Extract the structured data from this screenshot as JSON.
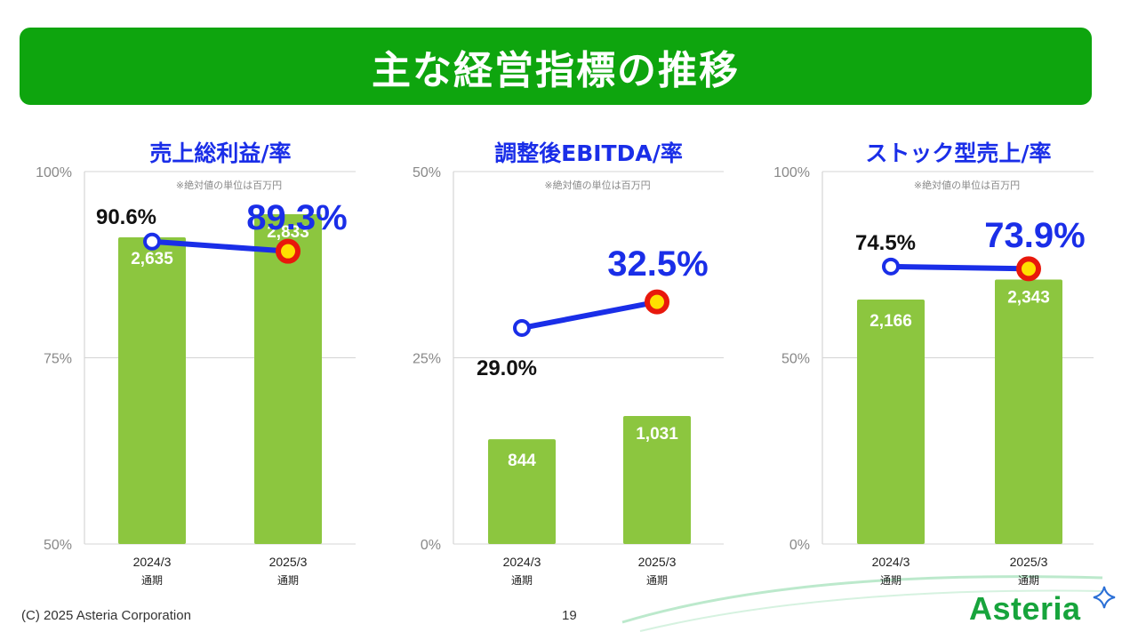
{
  "slide": {
    "title": "主な経営指標の推移",
    "copyright": "(C) 2025 Asteria Corporation",
    "page_number": "19",
    "logo_text": "Asteria"
  },
  "colors": {
    "banner": "#0ea50e",
    "bar": "#8cc63f",
    "line": "#1a2ee8",
    "marker_first": "#1a2ee8",
    "marker_last": "#e8180c",
    "marker_last_center": "#ffe000",
    "label_highlight": "#1a2ee8",
    "label_normal": "#111111",
    "chart_title": "#1a2ee8"
  },
  "chart_data": [
    {
      "type": "bar+line",
      "title": "売上総利益/率",
      "note": "※絶対値の単位は百万円",
      "categories": [
        "2024/3",
        "2025/3"
      ],
      "category_sublabel": "通期",
      "bar_values": [
        2635,
        2833
      ],
      "bar_labels": [
        "2,635",
        "2,833"
      ],
      "rate_values": [
        90.6,
        89.3
      ],
      "rate_labels": [
        "90.6%",
        "89.3%"
      ],
      "ylim": [
        50,
        100
      ],
      "yticks": [
        50,
        75,
        100
      ],
      "ytick_labels": [
        "50%",
        "75%",
        "100%"
      ],
      "grid": true
    },
    {
      "type": "bar+line",
      "title": "調整後EBITDA/率",
      "note": "※絶対値の単位は百万円",
      "categories": [
        "2024/3",
        "2025/3"
      ],
      "category_sublabel": "通期",
      "bar_values": [
        844,
        1031
      ],
      "bar_labels": [
        "844",
        "1,031"
      ],
      "rate_values": [
        29.0,
        32.5
      ],
      "rate_labels": [
        "29.0%",
        "32.5%"
      ],
      "ylim": [
        0,
        50
      ],
      "yticks": [
        0,
        25,
        50
      ],
      "ytick_labels": [
        "0%",
        "25%",
        "50%"
      ],
      "grid": true
    },
    {
      "type": "bar+line",
      "title": "ストック型売上/率",
      "note": "※絶対値の単位は百万円",
      "categories": [
        "2024/3",
        "2025/3"
      ],
      "category_sublabel": "通期",
      "bar_values": [
        2166,
        2343
      ],
      "bar_labels": [
        "2,166",
        "2,343"
      ],
      "rate_values": [
        74.5,
        73.9
      ],
      "rate_labels": [
        "74.5%",
        "73.9%"
      ],
      "ylim": [
        0,
        100
      ],
      "yticks": [
        0,
        50,
        100
      ],
      "ytick_labels": [
        "0%",
        "50%",
        "100%"
      ],
      "grid": true
    }
  ]
}
